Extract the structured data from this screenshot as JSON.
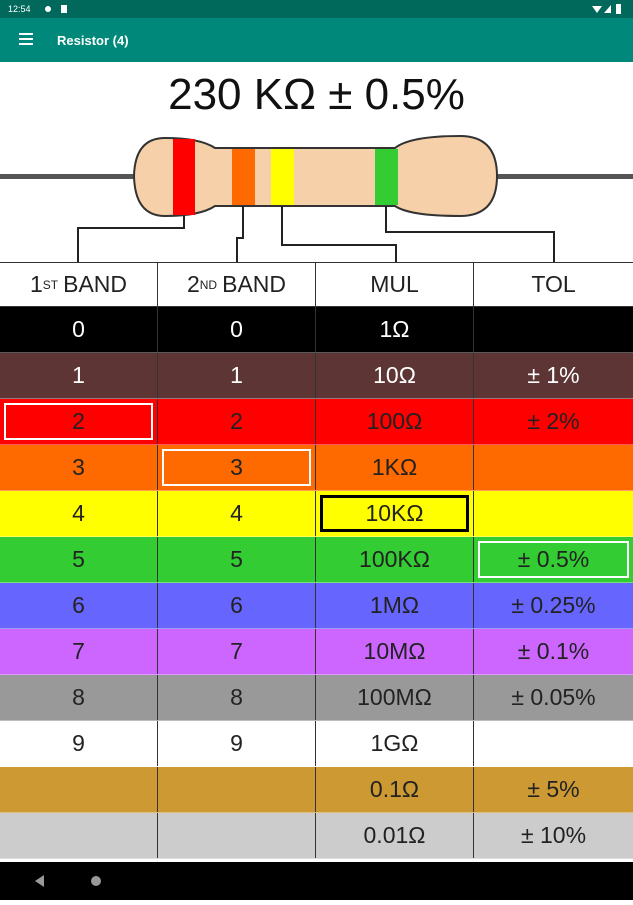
{
  "status_bar": {
    "time": "12:54"
  },
  "app_bar": {
    "title": "Resistor (4)"
  },
  "result": "230 KΩ ± 0.5%",
  "columns": [
    {
      "num": "1",
      "sup": "ST",
      "label": "BAND"
    },
    {
      "num": "2",
      "sup": "ND",
      "label": "BAND"
    },
    {
      "label": "MUL"
    },
    {
      "label": "TOL"
    }
  ],
  "rows": [
    {
      "color": "#000000",
      "text_color": "#ffffff",
      "cells": [
        "0",
        "0",
        "1Ω",
        null
      ]
    },
    {
      "color": "#5e3535",
      "text_color": "#ffffff",
      "cells": [
        "1",
        "1",
        "10Ω",
        "± 1%"
      ]
    },
    {
      "color": "#ff0000",
      "text_color": "#222222",
      "cells": [
        "2",
        "2",
        "100Ω",
        "± 2%"
      ]
    },
    {
      "color": "#ff6a00",
      "text_color": "#222222",
      "cells": [
        "3",
        "3",
        "1KΩ",
        null
      ]
    },
    {
      "color": "#ffff00",
      "text_color": "#222222",
      "cells": [
        "4",
        "4",
        "10KΩ",
        null
      ]
    },
    {
      "color": "#33cc33",
      "text_color": "#222222",
      "cells": [
        "5",
        "5",
        "100KΩ",
        "± 0.5%"
      ]
    },
    {
      "color": "#6666ff",
      "text_color": "#222222",
      "cells": [
        "6",
        "6",
        "1MΩ",
        "± 0.25%"
      ]
    },
    {
      "color": "#cc66ff",
      "text_color": "#222222",
      "cells": [
        "7",
        "7",
        "10MΩ",
        "± 0.1%"
      ]
    },
    {
      "color": "#999999",
      "text_color": "#222222",
      "cells": [
        "8",
        "8",
        "100MΩ",
        "± 0.05%"
      ]
    },
    {
      "color": "#ffffff",
      "text_color": "#222222",
      "cells": [
        "9",
        "9",
        "1GΩ",
        null
      ]
    },
    {
      "color": "#cc9933",
      "text_color": "#222222",
      "cells": [
        null,
        null,
        "0.1Ω",
        "± 5%"
      ]
    },
    {
      "color": "#cccccc",
      "text_color": "#222222",
      "cells": [
        null,
        null,
        "0.01Ω",
        "± 10%"
      ]
    }
  ]
}
